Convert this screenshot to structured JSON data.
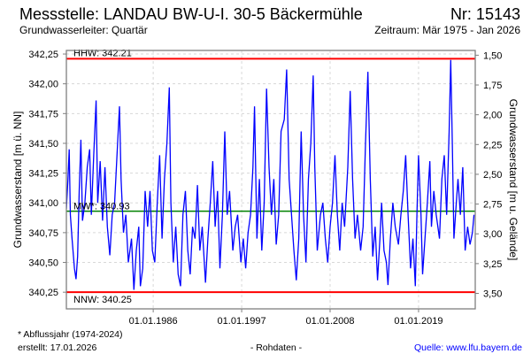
{
  "header": {
    "title": "Messstelle: LANDAU BW-U-I. 30-5 Bäckermühle",
    "number": "Nr: 15143",
    "aquifer": "Grundwasserleiter: Quartär",
    "period": "Zeitraum: Mär 1975 - Jan 2026"
  },
  "footer": {
    "note": "* Abflussjahr (1974-2024)",
    "created": "erstellt:  17.01.2026",
    "data_type": "- Rohdaten -",
    "source": "Quelle: www.lfu.bayern.de"
  },
  "colors": {
    "series": "#0000ff",
    "extreme": "#ff0000",
    "mean": "#008000",
    "grid": "#d8d8d8",
    "source": "#0000ff"
  },
  "chart_data": {
    "type": "line",
    "title": "Messstelle: LANDAU BW-U-I. 30-5 Bäckermühle",
    "ylabel": "Grundwasserstand [m ü. NN]",
    "ylabel_right": "Grundwasserstand [m u. Gelände]",
    "ylim": [
      340.11,
      342.28
    ],
    "xlim": [
      1975.2,
      2026.05
    ],
    "y_ticks": [
      "342,25",
      "342,00",
      "341,75",
      "341,50",
      "341,25",
      "341,00",
      "340,75",
      "340,50",
      "340,25"
    ],
    "y_tick_values": [
      342.25,
      342.0,
      341.75,
      341.5,
      341.25,
      341.0,
      340.75,
      340.5,
      340.25
    ],
    "y_right_ticks": [
      "1,50",
      "1,75",
      "2,00",
      "2,25",
      "2,50",
      "2,75",
      "3,00",
      "3,25",
      "3,50"
    ],
    "y_right_values": [
      1.5,
      1.75,
      2.0,
      2.25,
      2.5,
      2.75,
      3.0,
      3.25,
      3.5
    ],
    "ground_level": 343.74,
    "x_ticks": [
      "01.01.1986",
      "01.01.1997",
      "01.01.2008",
      "01.01.2019"
    ],
    "x_tick_values": [
      1986,
      1997,
      2008,
      2019
    ],
    "grid": true,
    "reference_lines": [
      {
        "label": "HHW: 342.21",
        "value": 342.21,
        "color": "#ff0000"
      },
      {
        "label": "MW*: 340.93",
        "value": 340.93,
        "color": "#008000"
      },
      {
        "label": "NNW: 340.25",
        "value": 340.25,
        "color": "#ff0000"
      }
    ],
    "series": [
      {
        "name": "Grundwasserstand",
        "points": [
          [
            1975.2,
            340.95
          ],
          [
            1975.4,
            341.2
          ],
          [
            1975.55,
            341.45
          ],
          [
            1975.7,
            340.9
          ],
          [
            1975.9,
            340.7
          ],
          [
            1976.2,
            340.45
          ],
          [
            1976.4,
            340.36
          ],
          [
            1976.6,
            340.55
          ],
          [
            1976.8,
            341.1
          ],
          [
            1977.0,
            341.53
          ],
          [
            1977.2,
            340.85
          ],
          [
            1977.5,
            341.0
          ],
          [
            1977.8,
            341.3
          ],
          [
            1978.1,
            341.45
          ],
          [
            1978.3,
            340.9
          ],
          [
            1978.6,
            341.4
          ],
          [
            1978.9,
            341.86
          ],
          [
            1979.1,
            341.0
          ],
          [
            1979.4,
            341.35
          ],
          [
            1979.7,
            340.85
          ],
          [
            1980.0,
            341.3
          ],
          [
            1980.3,
            340.8
          ],
          [
            1980.6,
            340.56
          ],
          [
            1980.9,
            340.9
          ],
          [
            1981.2,
            341.0
          ],
          [
            1981.5,
            341.4
          ],
          [
            1981.8,
            341.81
          ],
          [
            1982.0,
            341.2
          ],
          [
            1982.3,
            340.75
          ],
          [
            1982.6,
            340.9
          ],
          [
            1982.9,
            340.5
          ],
          [
            1983.3,
            340.7
          ],
          [
            1983.6,
            340.27
          ],
          [
            1983.9,
            340.6
          ],
          [
            1984.2,
            340.8
          ],
          [
            1984.4,
            340.3
          ],
          [
            1984.7,
            340.45
          ],
          [
            1985.0,
            341.1
          ],
          [
            1985.3,
            340.8
          ],
          [
            1985.6,
            341.1
          ],
          [
            1985.9,
            340.6
          ],
          [
            1986.2,
            340.5
          ],
          [
            1986.5,
            341.0
          ],
          [
            1986.8,
            341.4
          ],
          [
            1987.1,
            340.7
          ],
          [
            1987.4,
            341.2
          ],
          [
            1987.7,
            341.5
          ],
          [
            1988.0,
            341.97
          ],
          [
            1988.2,
            341.0
          ],
          [
            1988.5,
            340.5
          ],
          [
            1988.8,
            340.8
          ],
          [
            1989.1,
            340.4
          ],
          [
            1989.4,
            340.3
          ],
          [
            1989.7,
            340.9
          ],
          [
            1990.0,
            341.1
          ],
          [
            1990.3,
            340.6
          ],
          [
            1990.6,
            340.4
          ],
          [
            1990.9,
            340.8
          ],
          [
            1991.2,
            340.7
          ],
          [
            1991.5,
            341.15
          ],
          [
            1991.8,
            340.6
          ],
          [
            1992.1,
            340.8
          ],
          [
            1992.5,
            340.33
          ],
          [
            1992.8,
            340.7
          ],
          [
            1993.1,
            341.0
          ],
          [
            1993.4,
            341.35
          ],
          [
            1993.7,
            340.8
          ],
          [
            1994.0,
            341.1
          ],
          [
            1994.3,
            340.45
          ],
          [
            1994.6,
            340.9
          ],
          [
            1994.9,
            341.6
          ],
          [
            1995.2,
            340.9
          ],
          [
            1995.5,
            341.1
          ],
          [
            1995.9,
            340.6
          ],
          [
            1996.2,
            340.8
          ],
          [
            1996.5,
            340.9
          ],
          [
            1996.9,
            340.5
          ],
          [
            1997.2,
            340.7
          ],
          [
            1997.5,
            340.45
          ],
          [
            1997.8,
            340.75
          ],
          [
            1998.1,
            340.9
          ],
          [
            1998.4,
            341.3
          ],
          [
            1998.6,
            341.81
          ],
          [
            1998.9,
            340.7
          ],
          [
            1999.2,
            341.2
          ],
          [
            1999.5,
            340.6
          ],
          [
            1999.8,
            341.0
          ],
          [
            2000.1,
            341.96
          ],
          [
            2000.4,
            341.3
          ],
          [
            2000.7,
            340.9
          ],
          [
            2001.0,
            341.2
          ],
          [
            2001.3,
            340.65
          ],
          [
            2001.6,
            340.9
          ],
          [
            2001.9,
            341.6
          ],
          [
            2002.3,
            341.7
          ],
          [
            2002.6,
            342.12
          ],
          [
            2002.9,
            341.2
          ],
          [
            2003.2,
            340.9
          ],
          [
            2003.5,
            340.6
          ],
          [
            2003.8,
            340.35
          ],
          [
            2004.1,
            340.7
          ],
          [
            2004.4,
            341.6
          ],
          [
            2004.7,
            340.9
          ],
          [
            2005.0,
            340.5
          ],
          [
            2005.3,
            341.2
          ],
          [
            2005.6,
            341.5
          ],
          [
            2005.9,
            342.07
          ],
          [
            2006.1,
            341.3
          ],
          [
            2006.4,
            340.6
          ],
          [
            2006.8,
            340.9
          ],
          [
            2007.1,
            341.0
          ],
          [
            2007.4,
            340.7
          ],
          [
            2007.7,
            340.5
          ],
          [
            2008.0,
            340.8
          ],
          [
            2008.3,
            341.0
          ],
          [
            2008.6,
            341.4
          ],
          [
            2008.9,
            340.9
          ],
          [
            2009.2,
            340.6
          ],
          [
            2009.5,
            341.0
          ],
          [
            2009.8,
            340.8
          ],
          [
            2010.2,
            341.3
          ],
          [
            2010.5,
            341.94
          ],
          [
            2010.8,
            341.2
          ],
          [
            2011.1,
            340.7
          ],
          [
            2011.4,
            340.9
          ],
          [
            2011.8,
            340.6
          ],
          [
            2012.1,
            340.8
          ],
          [
            2012.4,
            341.5
          ],
          [
            2012.7,
            342.1
          ],
          [
            2013.0,
            341.2
          ],
          [
            2013.3,
            340.55
          ],
          [
            2013.6,
            340.8
          ],
          [
            2013.9,
            340.35
          ],
          [
            2014.2,
            340.7
          ],
          [
            2014.4,
            341.0
          ],
          [
            2014.7,
            340.6
          ],
          [
            2015.0,
            340.5
          ],
          [
            2015.2,
            340.31
          ],
          [
            2015.5,
            340.7
          ],
          [
            2015.8,
            341.0
          ],
          [
            2016.1,
            340.8
          ],
          [
            2016.5,
            340.65
          ],
          [
            2016.8,
            340.9
          ],
          [
            2017.1,
            341.1
          ],
          [
            2017.4,
            341.4
          ],
          [
            2017.7,
            340.9
          ],
          [
            2018.0,
            340.45
          ],
          [
            2018.3,
            340.7
          ],
          [
            2018.6,
            340.3
          ],
          [
            2018.8,
            340.9
          ],
          [
            2019.0,
            341.4
          ],
          [
            2019.3,
            340.9
          ],
          [
            2019.5,
            340.4
          ],
          [
            2019.8,
            340.7
          ],
          [
            2020.1,
            341.0
          ],
          [
            2020.4,
            341.35
          ],
          [
            2020.6,
            340.8
          ],
          [
            2020.9,
            341.1
          ],
          [
            2021.2,
            340.9
          ],
          [
            2021.6,
            340.7
          ],
          [
            2021.9,
            341.2
          ],
          [
            2022.2,
            341.4
          ],
          [
            2022.5,
            340.9
          ],
          [
            2022.8,
            341.6
          ],
          [
            2023.0,
            342.2
          ],
          [
            2023.2,
            341.5
          ],
          [
            2023.4,
            340.7
          ],
          [
            2023.7,
            341.0
          ],
          [
            2023.9,
            341.2
          ],
          [
            2024.2,
            340.9
          ],
          [
            2024.5,
            341.3
          ],
          [
            2024.8,
            340.6
          ],
          [
            2025.1,
            340.8
          ],
          [
            2025.4,
            340.65
          ],
          [
            2025.7,
            340.75
          ],
          [
            2025.9,
            340.9
          ]
        ]
      }
    ]
  }
}
